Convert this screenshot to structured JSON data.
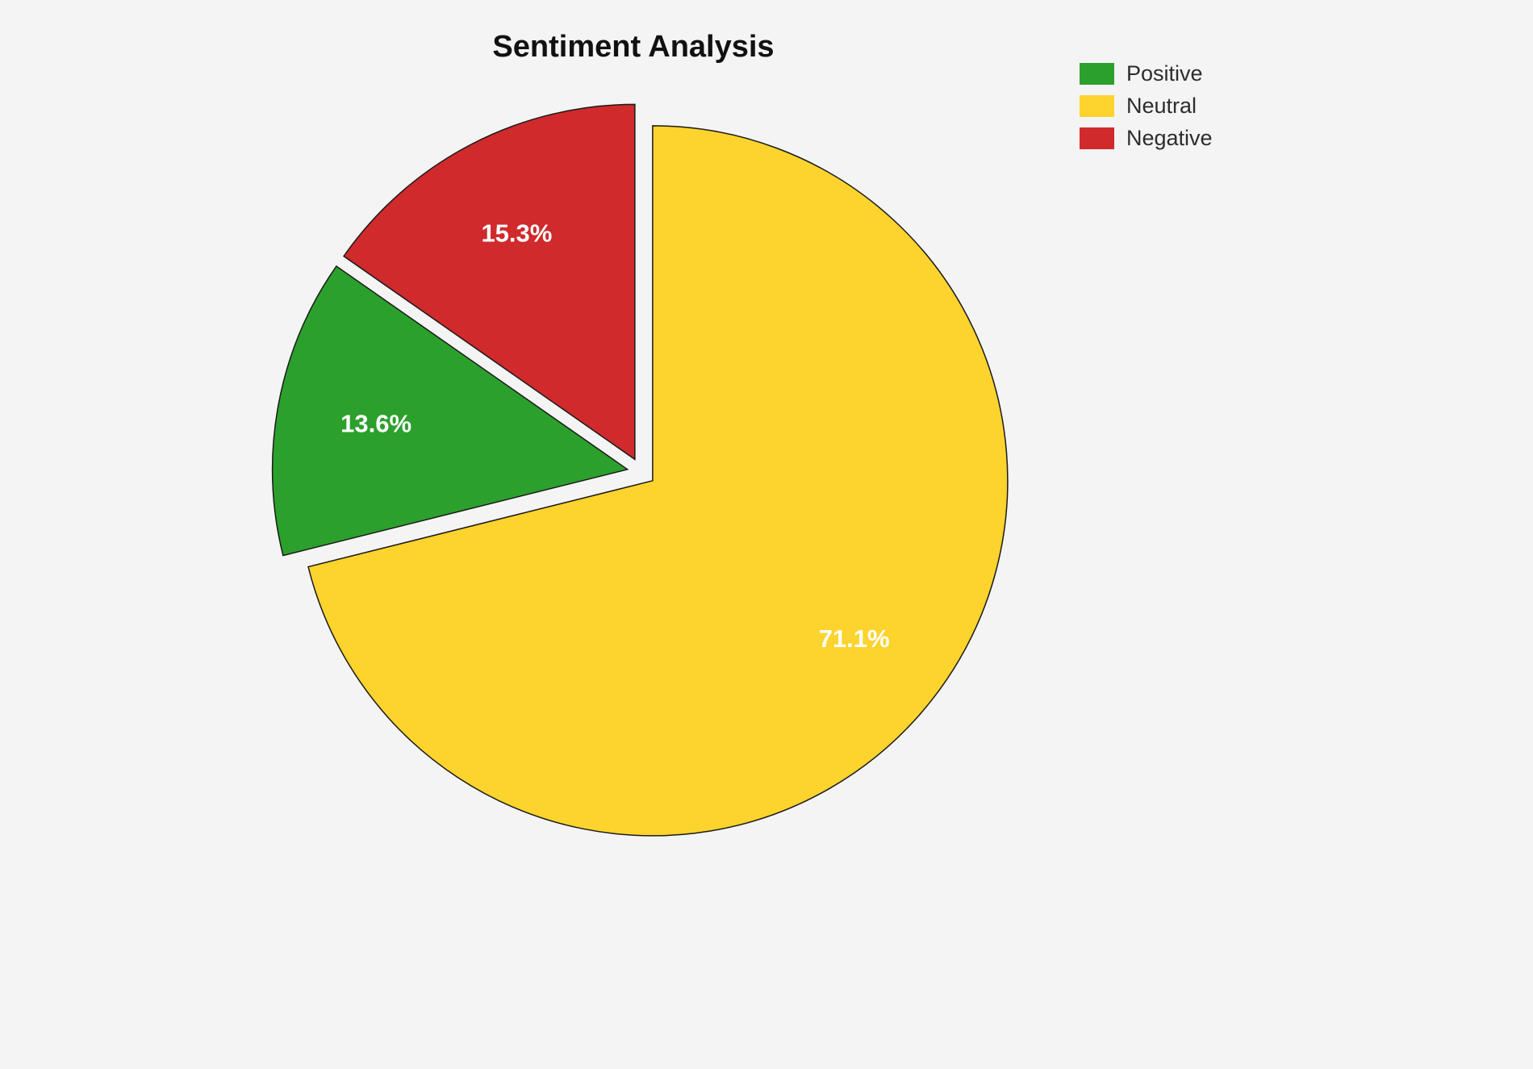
{
  "chart_data": {
    "type": "pie",
    "title": "Sentiment Analysis",
    "background_color": "#f4f4f5",
    "slice_border_color": "#1a1a1a",
    "pct_label_color": "#ffffff",
    "start_angle": 90,
    "direction": "counterclockwise",
    "explode": 0.04,
    "pct_distance": 0.72,
    "grid": false,
    "slices": [
      {
        "label": "Negative",
        "value": 15.3,
        "pct_label": "15.3%",
        "color": "#d02a2c"
      },
      {
        "label": "Positive",
        "value": 13.6,
        "pct_label": "13.6%",
        "color": "#2ca02c"
      },
      {
        "label": "Neutral",
        "value": 71.1,
        "pct_label": "71.1%",
        "color": "#fdd32e"
      }
    ],
    "legend": {
      "position": "upper right",
      "entries": [
        {
          "label": "Positive"
        },
        {
          "label": "Neutral"
        },
        {
          "label": "Negative"
        }
      ]
    }
  }
}
